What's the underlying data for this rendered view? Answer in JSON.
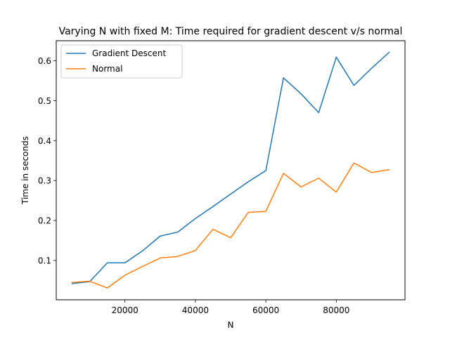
{
  "chart_data": {
    "type": "line",
    "title": "Varying N with fixed M: Time required for gradient descent v/s normal",
    "xlabel": "N",
    "ylabel": "Time in seconds",
    "x": [
      5000,
      10000,
      15000,
      20000,
      25000,
      30000,
      35000,
      40000,
      45000,
      50000,
      55000,
      60000,
      65000,
      70000,
      75000,
      80000,
      85000,
      90000,
      95000
    ],
    "series": [
      {
        "name": "Gradient Descent",
        "color": "#1f77b4",
        "values": [
          0.042,
          0.047,
          0.094,
          0.094,
          0.124,
          0.161,
          0.171,
          0.205,
          0.235,
          0.266,
          0.297,
          0.325,
          0.557,
          0.517,
          0.47,
          0.609,
          0.538,
          0.581,
          0.621
        ]
      },
      {
        "name": "Normal",
        "color": "#ff7f0e",
        "values": [
          0.045,
          0.048,
          0.031,
          0.063,
          0.085,
          0.106,
          0.11,
          0.125,
          0.178,
          0.157,
          0.22,
          0.223,
          0.318,
          0.284,
          0.306,
          0.271,
          0.344,
          0.32,
          0.327
        ]
      }
    ],
    "xlim": [
      500,
      99500
    ],
    "ylim": [
      0.0015,
      0.65
    ],
    "xticks": [
      20000,
      40000,
      60000,
      80000
    ],
    "xtick_labels": [
      "20000",
      "40000",
      "60000",
      "80000"
    ],
    "yticks": [
      0.1,
      0.2,
      0.3,
      0.4,
      0.5,
      0.6
    ],
    "ytick_labels": [
      "0.1",
      "0.2",
      "0.3",
      "0.4",
      "0.5",
      "0.6"
    ],
    "grid": false,
    "legend_position": "top-left"
  }
}
